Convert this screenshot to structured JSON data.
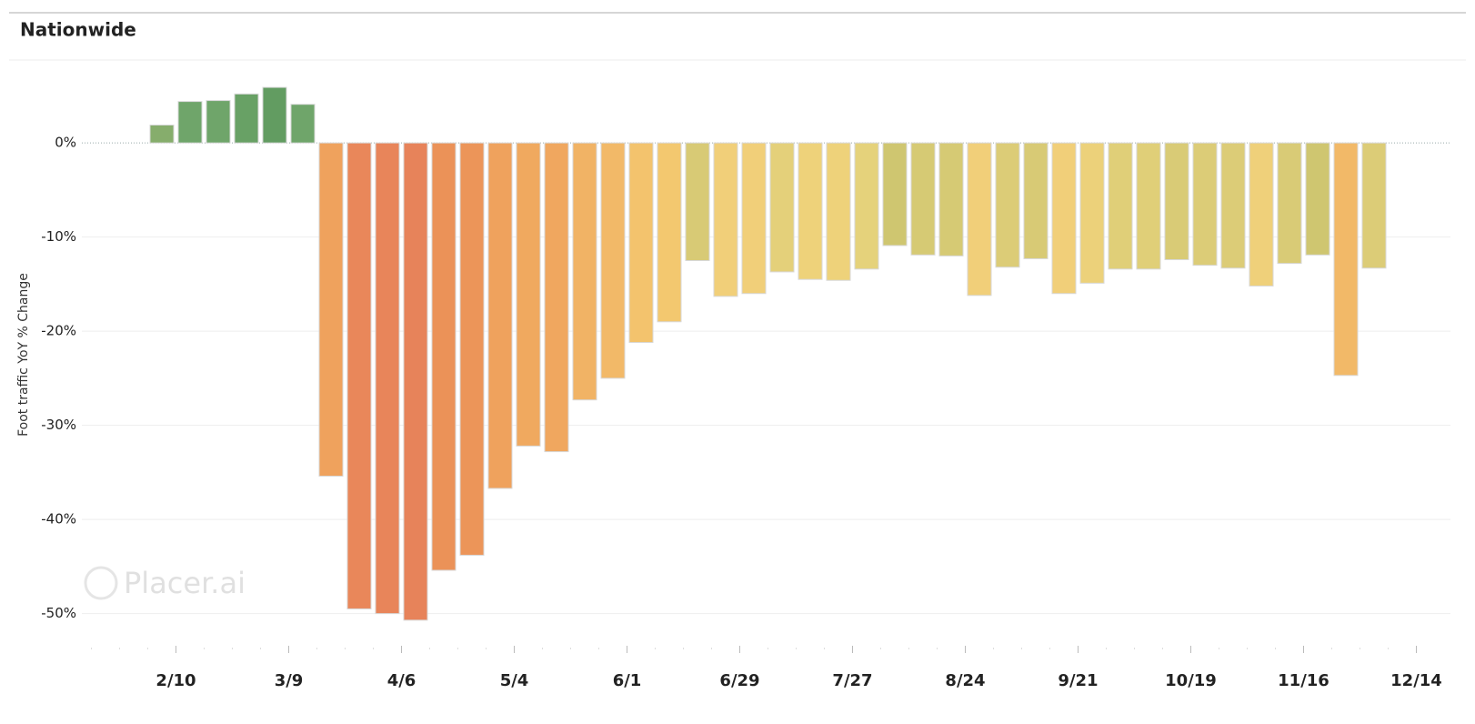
{
  "chart_data": {
    "type": "bar",
    "title": "Nationwide",
    "y_label": "Foot traffic YoY % Change",
    "watermark": "Placer.ai",
    "values": [
      1.9,
      4.4,
      4.5,
      5.2,
      5.9,
      4.1,
      -35.4,
      -49.5,
      -50.0,
      -50.7,
      -45.4,
      -43.8,
      -36.7,
      -32.2,
      -32.8,
      -27.3,
      -25.0,
      -21.2,
      -19.0,
      -12.5,
      -16.3,
      -16.0,
      -13.7,
      -14.5,
      -14.6,
      -13.4,
      -10.9,
      -11.9,
      -12.0,
      -16.2,
      -13.2,
      -12.3,
      -16.0,
      -14.9,
      -13.4,
      -13.4,
      -12.4,
      -13.0,
      -13.3,
      -15.2,
      -12.8,
      -11.9,
      -24.7,
      -13.3
    ],
    "colors": [
      "#86ad6c",
      "#6fa56a",
      "#6fa56a",
      "#68a165",
      "#629c61",
      "#6fa56a",
      "#efa25d",
      "#e9875a",
      "#e8855a",
      "#e7835a",
      "#eb9258",
      "#ec9559",
      "#efa25d",
      "#f0a95f",
      "#f0a75f",
      "#f1b365",
      "#f2b968",
      "#f3c36d",
      "#f3c86f",
      "#d8ca75",
      "#f1cf79",
      "#f1cf79",
      "#e4d07a",
      "#eed27a",
      "#eed27a",
      "#e5d27b",
      "#cfc670",
      "#d6ca74",
      "#d6ca74",
      "#f1cf79",
      "#dccc77",
      "#d8ca75",
      "#f1cf79",
      "#ecd17a",
      "#e0cf78",
      "#e0cf78",
      "#d9cb76",
      "#dccc77",
      "#dccc77",
      "#efd07a",
      "#d9cb76",
      "#cfc670",
      "#f2b968",
      "#dccc77"
    ],
    "xticks": [
      "2/10",
      "3/9",
      "4/6",
      "5/4",
      "6/1",
      "6/29",
      "7/27",
      "8/24",
      "9/21",
      "10/19",
      "11/16",
      "12/14"
    ],
    "ylim": [
      -54,
      9
    ],
    "yticks": [
      {
        "value": 0,
        "label": "0%"
      },
      {
        "value": -10,
        "label": "-10%"
      },
      {
        "value": -20,
        "label": "-20%"
      },
      {
        "value": -30,
        "label": "-30%"
      },
      {
        "value": -40,
        "label": "-40%"
      },
      {
        "value": -50,
        "label": "-50%"
      }
    ],
    "grid": true
  }
}
